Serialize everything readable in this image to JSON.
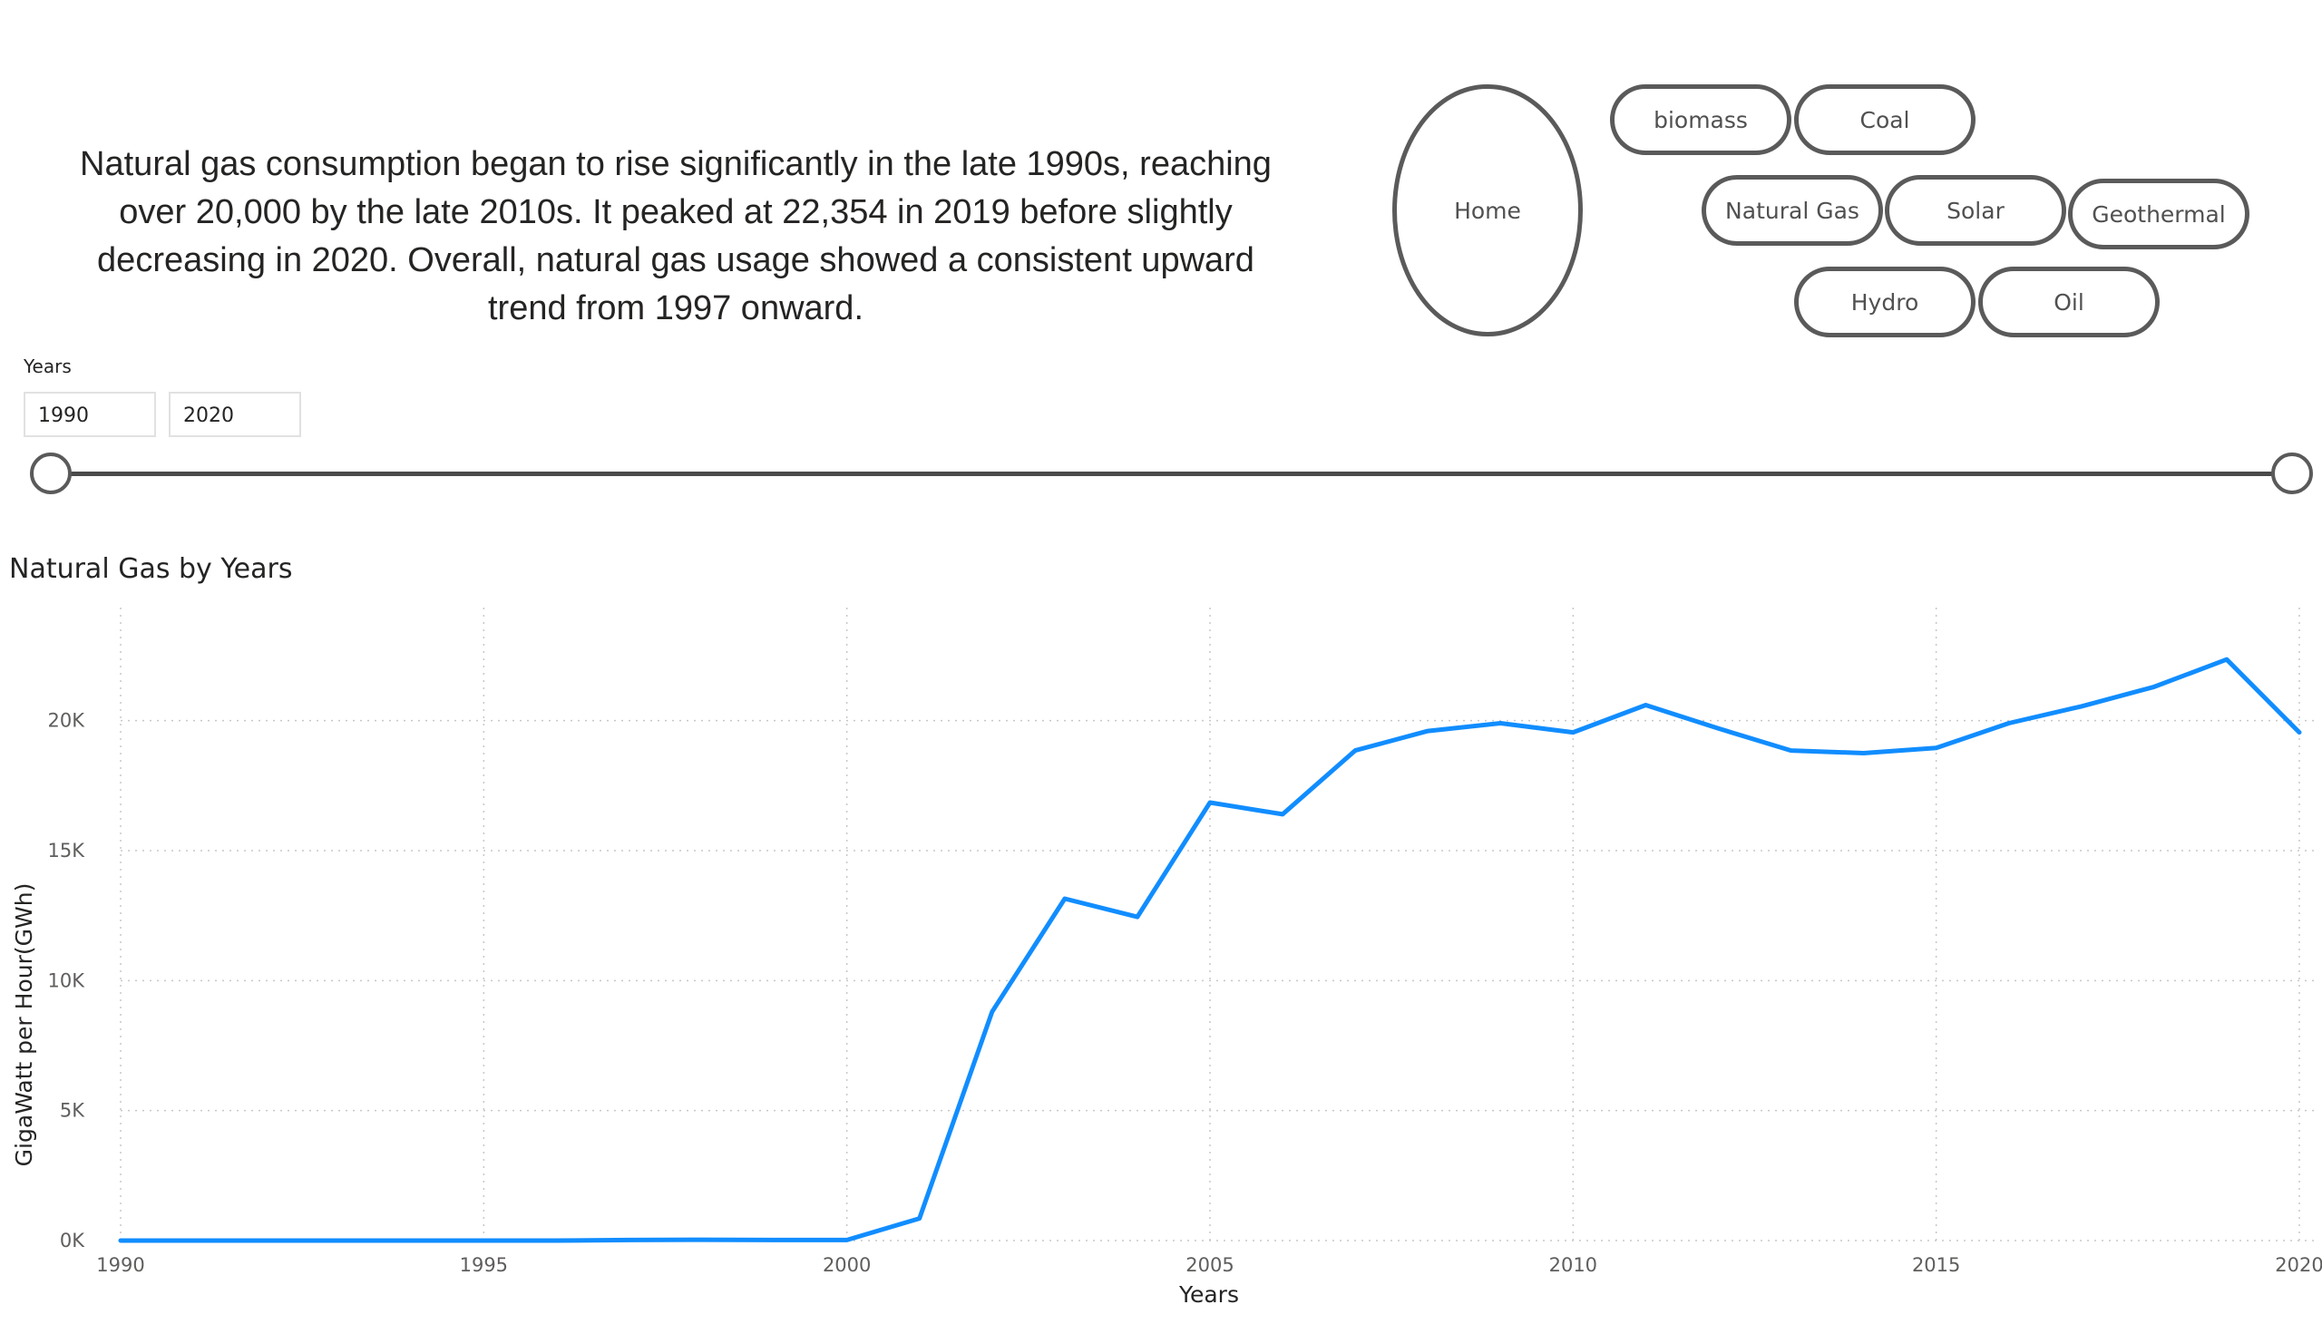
{
  "narrative": {
    "text": "Natural gas consumption began to rise significantly in the late 1990s, reaching over 20,000 by the late 2010s. It peaked at 22,354 in 2019 before slightly decreasing in 2020. Overall, natural gas usage showed a consistent upward trend from 1997 onward."
  },
  "nav": {
    "home": "Home",
    "biomass": "biomass",
    "coal": "Coal",
    "natural_gas": "Natural Gas",
    "solar": "Solar",
    "geothermal": "Geothermal",
    "hydro": "Hydro",
    "oil": "Oil"
  },
  "slicer": {
    "label": "Years",
    "start": "1990",
    "end": "2020"
  },
  "colors": {
    "line": "#118DFF",
    "grid": "#c8c8c8",
    "button_border": "#5a5a5a"
  },
  "chart_data": {
    "type": "line",
    "title": "Natural Gas by Years",
    "xlabel": "Years",
    "ylabel": "GigaWatt per Hour(GWh)",
    "xlim": [
      1990,
      2020
    ],
    "ylim": [
      0,
      24000
    ],
    "xticks": [
      "1990",
      "1995",
      "2000",
      "2005",
      "2010",
      "2015",
      "2020"
    ],
    "yticks": [
      "0K",
      "5K",
      "10K",
      "15K",
      "20K"
    ],
    "x": [
      1990,
      1991,
      1992,
      1993,
      1994,
      1995,
      1996,
      1997,
      1998,
      1999,
      2000,
      2001,
      2002,
      2003,
      2004,
      2005,
      2006,
      2007,
      2008,
      2009,
      2010,
      2011,
      2012,
      2013,
      2014,
      2015,
      2016,
      2017,
      2018,
      2019,
      2020
    ],
    "series": [
      {
        "values": [
          0,
          0,
          0,
          0,
          0,
          0,
          0,
          20,
          30,
          20,
          20,
          850,
          8800,
          13150,
          12450,
          16850,
          16400,
          18850,
          19600,
          19900,
          19550,
          20600,
          19700,
          18850,
          18750,
          18950,
          19900,
          20550,
          21300,
          22354,
          19550
        ]
      }
    ],
    "grid": true,
    "legend": "none"
  }
}
